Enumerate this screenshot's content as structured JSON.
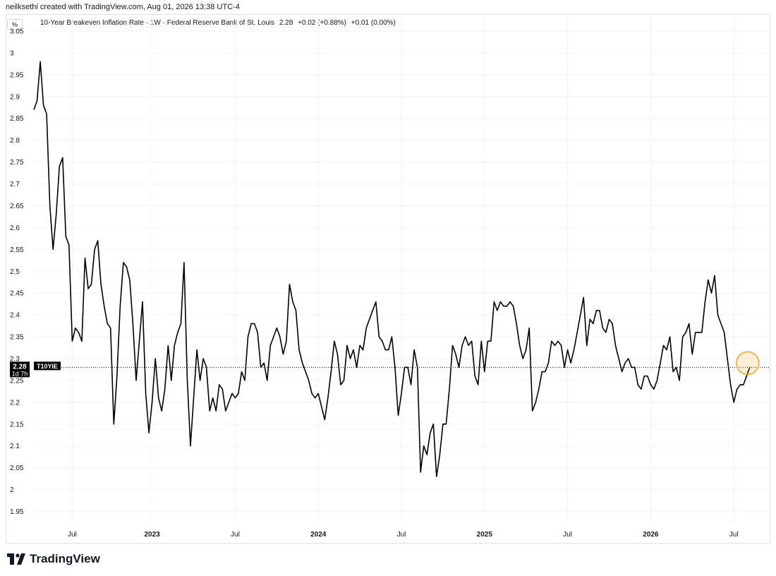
{
  "attribution": "neilksethi created with TradingView.com, Aug 01, 2026 13:38 UTC-4",
  "unit_badge": "%",
  "legend": {
    "title": "10-Year Breakeven Inflation Rate · 1W · Federal Reserve Bank of St. Louis",
    "last": "2.28",
    "change": "+0.02 (+0.88%)",
    "extra": "+0.01 (0.00%)"
  },
  "price_label": {
    "value": "2.28",
    "symbol": "T10YIE",
    "countdown": "1d 7h"
  },
  "brand": "TradingView",
  "colors": {
    "line": "#000000",
    "highlight": "#f5a623",
    "grid": "#f0f3fa",
    "price_label_bg": "#000000"
  },
  "chart_data": {
    "type": "line",
    "title": "10-Year Breakeven Inflation Rate",
    "xlabel": "",
    "ylabel": "%",
    "ylim": [
      1.925,
      3.05
    ],
    "y_ticks": [
      "1.95",
      "2",
      "2.05",
      "2.1",
      "2.15",
      "2.2",
      "2.25",
      "2.3",
      "2.35",
      "2.4",
      "2.45",
      "2.5",
      "2.55",
      "2.6",
      "2.65",
      "2.7",
      "2.75",
      "2.8",
      "2.85",
      "2.9",
      "2.95",
      "3",
      "3.05"
    ],
    "x_ticks": [
      {
        "label": "Jul",
        "week": 12,
        "bold": false
      },
      {
        "label": "2023",
        "week": 37,
        "bold": true
      },
      {
        "label": "Jul",
        "week": 63,
        "bold": false
      },
      {
        "label": "2024",
        "week": 89,
        "bold": true
      },
      {
        "label": "Jul",
        "week": 115,
        "bold": false
      },
      {
        "label": "2025",
        "week": 141,
        "bold": true
      },
      {
        "label": "Jul",
        "week": 167,
        "bold": false
      },
      {
        "label": "2026",
        "week": 193,
        "bold": true
      },
      {
        "label": "Jul",
        "week": 219,
        "bold": false
      }
    ],
    "x_range_weeks": [
      0,
      230
    ],
    "series": [
      {
        "name": "T10YIE",
        "values": [
          2.87,
          2.89,
          2.98,
          2.88,
          2.86,
          2.65,
          2.55,
          2.63,
          2.74,
          2.76,
          2.58,
          2.56,
          2.34,
          2.37,
          2.36,
          2.34,
          2.53,
          2.46,
          2.47,
          2.55,
          2.57,
          2.47,
          2.42,
          2.38,
          2.37,
          2.15,
          2.26,
          2.42,
          2.52,
          2.51,
          2.48,
          2.38,
          2.25,
          2.34,
          2.43,
          2.22,
          2.13,
          2.2,
          2.3,
          2.21,
          2.18,
          2.23,
          2.33,
          2.25,
          2.33,
          2.36,
          2.38,
          2.52,
          2.25,
          2.1,
          2.21,
          2.32,
          2.25,
          2.3,
          2.28,
          2.18,
          2.21,
          2.18,
          2.24,
          2.23,
          2.18,
          2.2,
          2.22,
          2.21,
          2.22,
          2.27,
          2.25,
          2.35,
          2.38,
          2.38,
          2.36,
          2.28,
          2.29,
          2.25,
          2.33,
          2.35,
          2.37,
          2.35,
          2.31,
          2.34,
          2.47,
          2.43,
          2.41,
          2.32,
          2.29,
          2.27,
          2.25,
          2.22,
          2.21,
          2.22,
          2.19,
          2.16,
          2.21,
          2.27,
          2.34,
          2.31,
          2.24,
          2.25,
          2.33,
          2.3,
          2.32,
          2.28,
          2.33,
          2.32,
          2.37,
          2.39,
          2.41,
          2.43,
          2.35,
          2.34,
          2.32,
          2.32,
          2.35,
          2.28,
          2.17,
          2.22,
          2.28,
          2.28,
          2.24,
          2.32,
          2.28,
          2.04,
          2.1,
          2.08,
          2.13,
          2.15,
          2.03,
          2.08,
          2.15,
          2.15,
          2.23,
          2.33,
          2.31,
          2.28,
          2.33,
          2.35,
          2.33,
          2.34,
          2.26,
          2.24,
          2.34,
          2.27,
          2.34,
          2.34,
          2.43,
          2.41,
          2.43,
          2.42,
          2.42,
          2.43,
          2.42,
          2.38,
          2.33,
          2.3,
          2.32,
          2.37,
          2.18,
          2.2,
          2.23,
          2.27,
          2.27,
          2.29,
          2.34,
          2.33,
          2.34,
          2.33,
          2.28,
          2.32,
          2.29,
          2.32,
          2.36,
          2.4,
          2.44,
          2.33,
          2.39,
          2.38,
          2.41,
          2.41,
          2.37,
          2.36,
          2.39,
          2.38,
          2.33,
          2.3,
          2.27,
          2.29,
          2.3,
          2.28,
          2.28,
          2.24,
          2.23,
          2.26,
          2.26,
          2.24,
          2.23,
          2.25,
          2.29,
          2.33,
          2.32,
          2.35,
          2.27,
          2.28,
          2.25,
          2.35,
          2.36,
          2.38,
          2.31,
          2.36,
          2.36,
          2.36,
          2.43,
          2.48,
          2.45,
          2.49,
          2.4,
          2.38,
          2.36,
          2.3,
          2.24,
          2.2,
          2.23,
          2.24,
          2.24,
          2.26,
          2.28
        ]
      }
    ],
    "last_value": 2.28,
    "grid": true,
    "y_axis_position": "left"
  }
}
